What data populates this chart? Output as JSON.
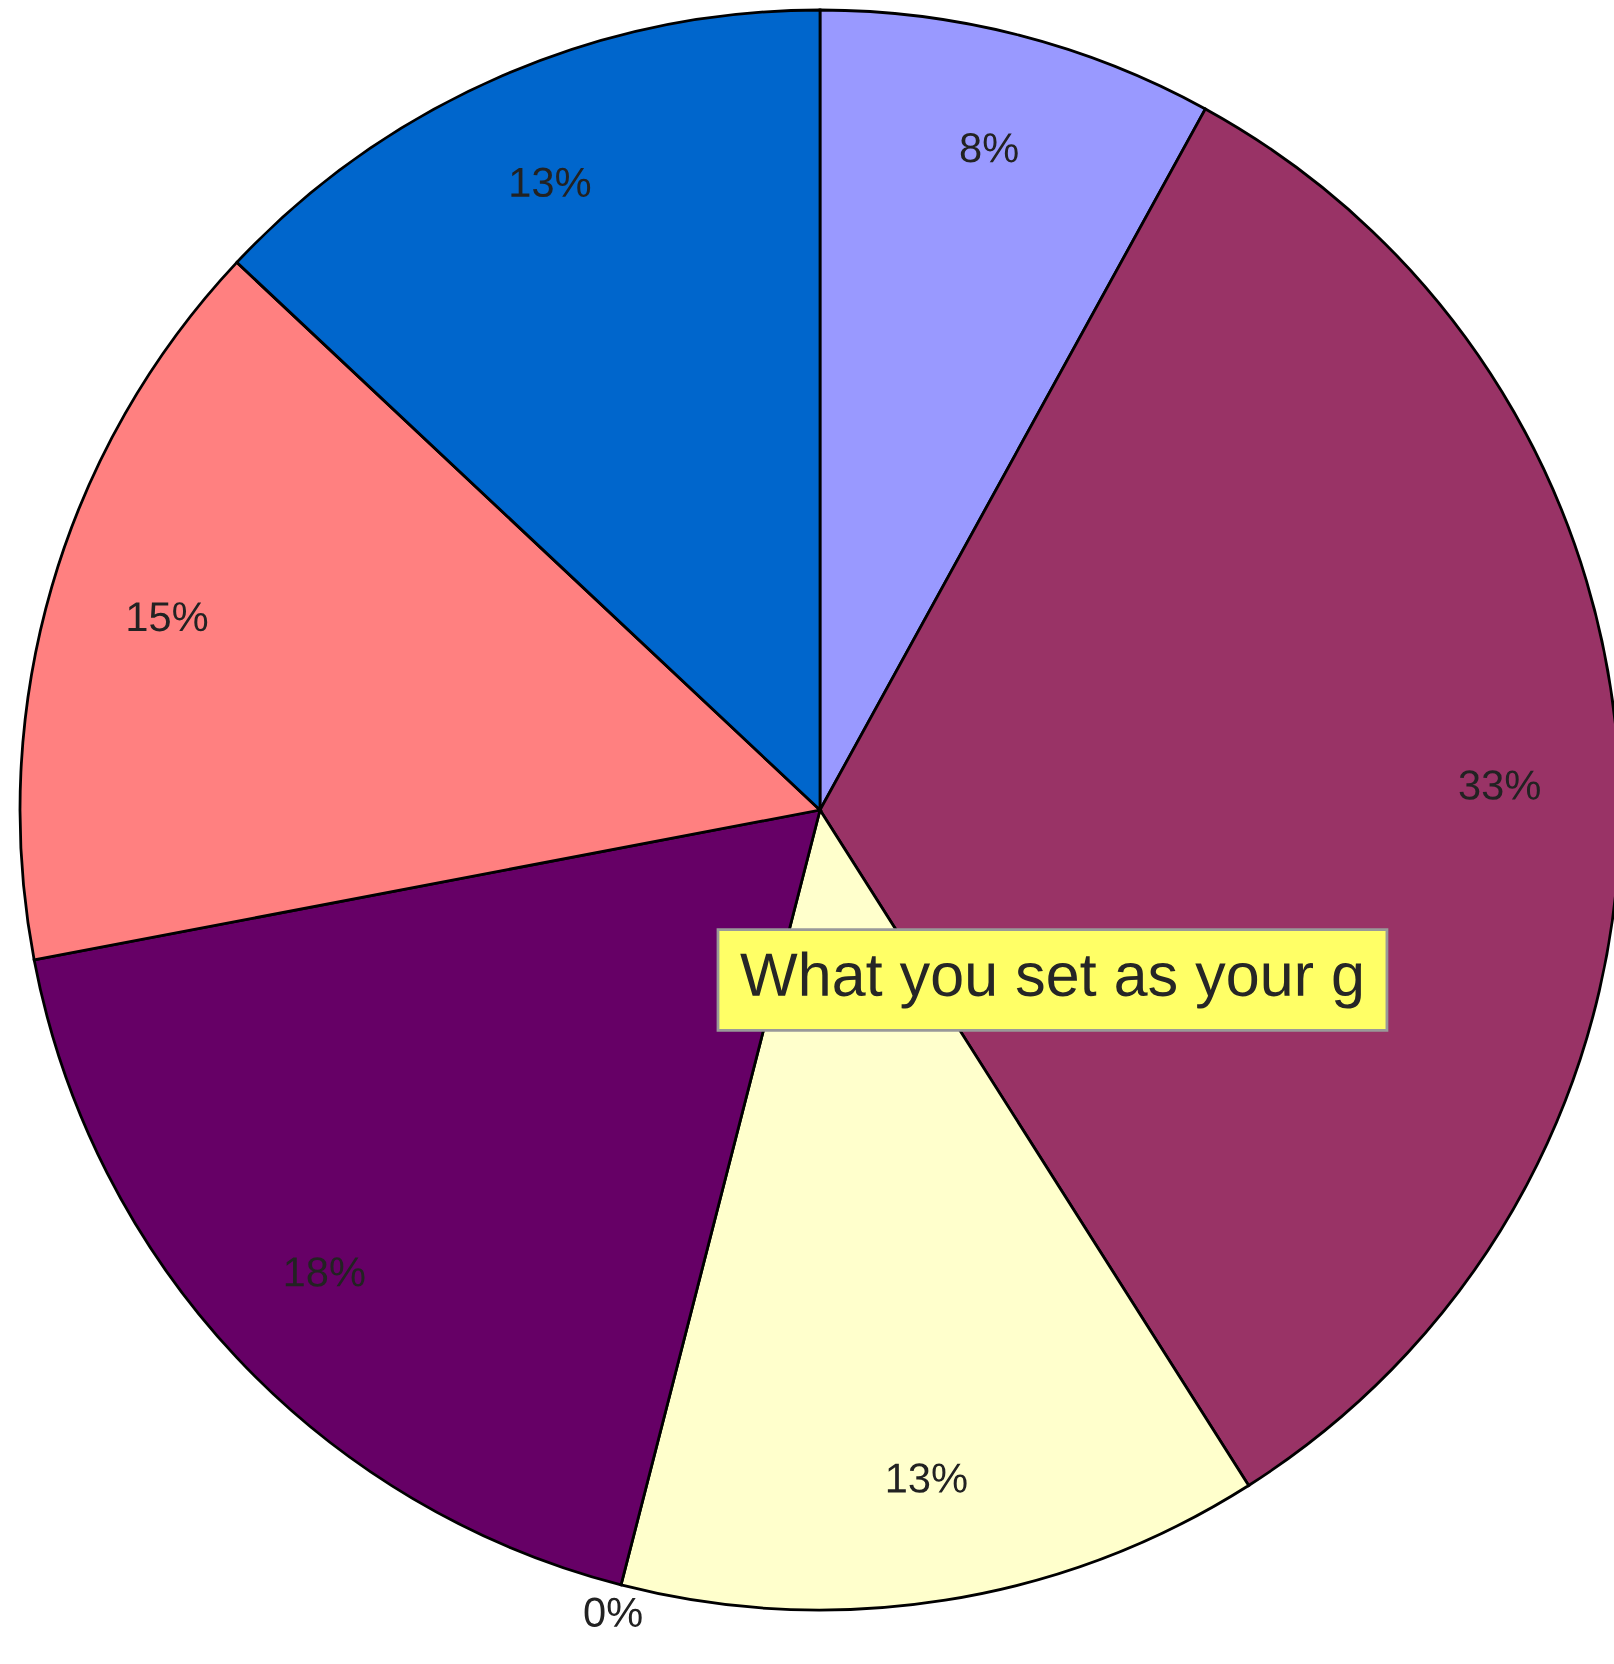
{
  "chart_data": {
    "type": "pie",
    "categories": [
      null,
      null,
      null,
      null,
      null,
      null,
      null
    ],
    "values": [
      8,
      33,
      13,
      0,
      18,
      15,
      13
    ],
    "colors": [
      "#9999ff",
      "#993366",
      "#ffffcc",
      "#ccffff",
      "#660066",
      "#ff8080",
      "#0066cc"
    ],
    "value_labels": [
      "8%",
      "33%",
      "13%",
      "0%",
      "18%",
      "15%",
      "13%"
    ],
    "annotations": [
      "What you set as your g"
    ],
    "legend": false
  }
}
